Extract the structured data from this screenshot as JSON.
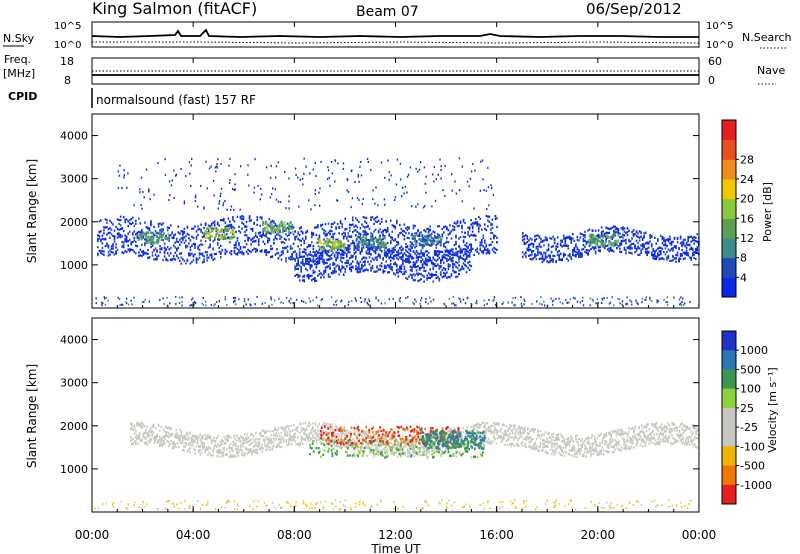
{
  "header": {
    "station": "King Salmon (fitACF)",
    "beam": "Beam 07",
    "date": "06/Sep/2012"
  },
  "params": {
    "nsky_label": "N.Sky",
    "nsky_ticks": [
      "10^5",
      "10^0"
    ],
    "nsearch_label": "N.Search",
    "nsearch_ticks": [
      "10^5",
      "10^0"
    ],
    "freq_label": "Freq.",
    "freq_unit": "[MHz]",
    "freq_ticks": [
      "18",
      "8"
    ],
    "nave_label": "Nave",
    "nave_ticks": [
      "60",
      "0"
    ],
    "cpid_label": "CPID",
    "cpid_value": "normalsound (fast) 157 RF"
  },
  "chart_data": [
    {
      "type": "heatmap",
      "panel": "power",
      "title": "",
      "xlabel": "",
      "ylabel": "Slant Range [km]",
      "ylim": [
        0,
        4500
      ],
      "yticks": [
        "1000",
        "2000",
        "3000",
        "4000"
      ],
      "xlim": [
        0,
        24
      ],
      "colorbar": {
        "label": "Power [dB]",
        "ticks": [
          "4",
          "8",
          "12",
          "16",
          "20",
          "24",
          "28"
        ],
        "colors": [
          "#0a28e6",
          "#1e4bb4",
          "#3c8c8c",
          "#5aa050",
          "#8cc83c",
          "#f0c800",
          "#f08c1e",
          "#e6501e",
          "#e61e1e"
        ]
      },
      "echo_bands": [
        {
          "t_start": 0.2,
          "t_end": 16.0,
          "range_center_km": 1600,
          "range_width_km": 450
        },
        {
          "t_start": 8.0,
          "t_end": 15.0,
          "range_center_km": 1100,
          "range_width_km": 350
        },
        {
          "t_start": 17.0,
          "t_end": 24.0,
          "range_center_km": 1500,
          "range_width_km": 300
        }
      ],
      "strong_echo_patches": [
        {
          "t": 2.4,
          "range_km": 1650,
          "power_db": 18
        },
        {
          "t": 5.0,
          "range_km": 1750,
          "power_db": 22
        },
        {
          "t": 7.3,
          "range_km": 1900,
          "power_db": 20
        },
        {
          "t": 9.4,
          "range_km": 1500,
          "power_db": 22
        },
        {
          "t": 11.0,
          "range_km": 1550,
          "power_db": 16
        },
        {
          "t": 13.2,
          "range_km": 1600,
          "power_db": 14
        },
        {
          "t": 20.2,
          "range_km": 1600,
          "power_db": 18
        }
      ]
    },
    {
      "type": "heatmap",
      "panel": "velocity",
      "title": "",
      "xlabel": "Time UT",
      "ylabel": "Slant Range [km]",
      "ylim": [
        0,
        4500
      ],
      "yticks": [
        "1000",
        "2000",
        "3000",
        "4000"
      ],
      "xlim": [
        0,
        24
      ],
      "xticks": [
        "00:00",
        "04:00",
        "08:00",
        "12:00",
        "16:00",
        "20:00",
        "00:00"
      ],
      "colorbar": {
        "label": "Velocity [m s⁻¹]",
        "ticks": [
          "1000",
          "500",
          "100",
          "25",
          "-25",
          "-100",
          "-500",
          "-1000"
        ],
        "colors": [
          "#1e32c8",
          "#2878b4",
          "#3c9650",
          "#8cd23c",
          "#c8c8c0",
          "#c8c8c0",
          "#f0b400",
          "#f07800",
          "#e61e1e"
        ]
      },
      "ground_scatter_band": {
        "t_start": 1.5,
        "t_end": 24.0,
        "range_center_km": 1700,
        "color": "#c8c8c0"
      },
      "velocity_patches": [
        {
          "t_start": 8.5,
          "t_end": 15.5,
          "range_km": 1500,
          "velocity_ms": 100
        },
        {
          "t_start": 9.0,
          "t_end": 14.5,
          "range_km": 1800,
          "velocity_ms": -500
        },
        {
          "t_start": 13.0,
          "t_end": 15.5,
          "range_km": 1700,
          "velocity_ms": 500
        }
      ]
    }
  ]
}
